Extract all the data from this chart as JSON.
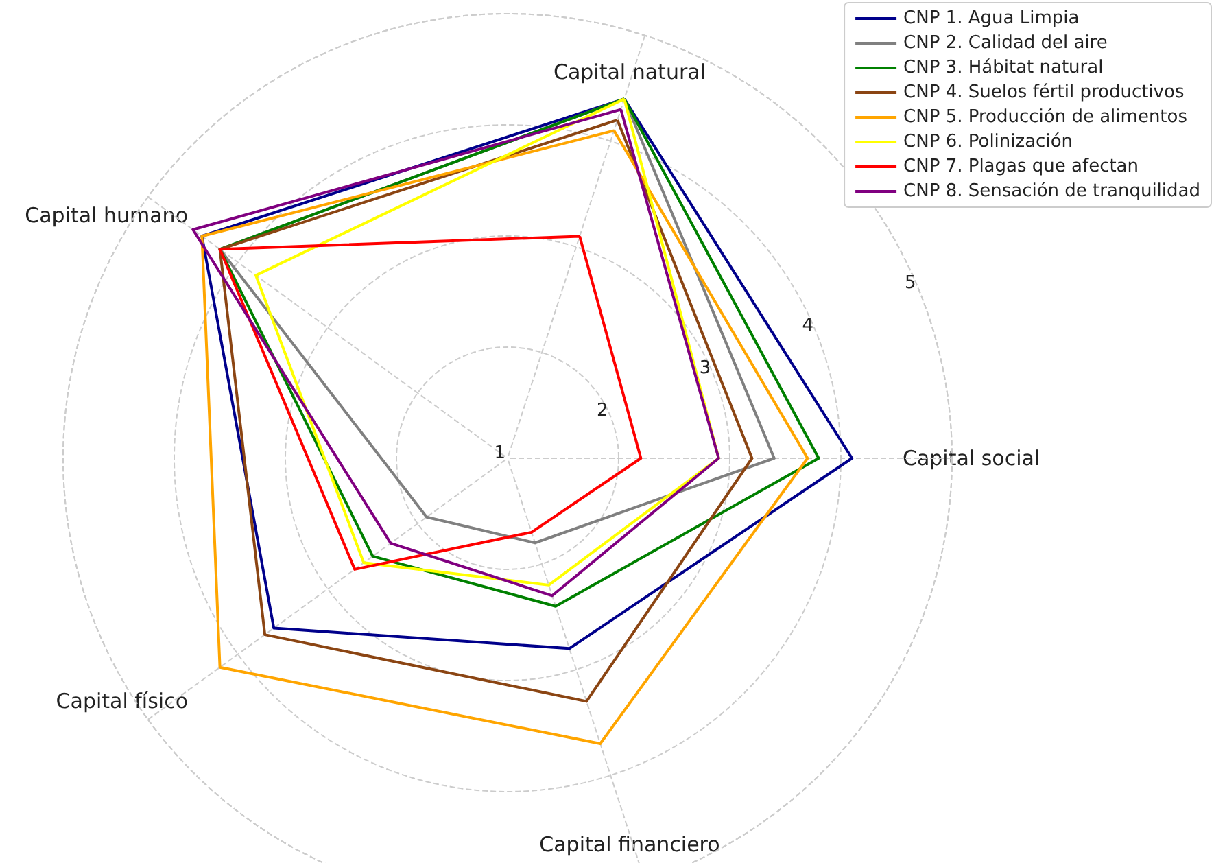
{
  "chart_data": {
    "type": "radar",
    "categories": [
      "Capital natural",
      "Capital social",
      "Capital financiero",
      "Capital físico",
      "Capital humano"
    ],
    "ylim": [
      1,
      5
    ],
    "yticks": [
      1,
      2,
      3,
      4,
      5
    ],
    "grid": true,
    "legend": "top right",
    "marker": "none",
    "line_style": "solid",
    "series": [
      {
        "name": "CNP 1. Agua Limpia",
        "color": "#00008b",
        "values": [
          4.4,
          4.1,
          2.8,
          3.6,
          4.4
        ]
      },
      {
        "name": "CNP 2. Calidad del aire",
        "color": "#808080",
        "values": [
          4.4,
          3.4,
          1.8,
          1.9,
          4.2
        ]
      },
      {
        "name": "CNP 3. Hábitat natural",
        "color": "#008000",
        "values": [
          4.4,
          3.8,
          2.4,
          2.5,
          4.2
        ]
      },
      {
        "name": "CNP 4. Suelos fértil productivos",
        "color": "#8b4513",
        "values": [
          4.2,
          3.2,
          3.3,
          3.7,
          4.2
        ]
      },
      {
        "name": "CNP 5. Producción de alimentos",
        "color": "#ffa500",
        "values": [
          4.1,
          3.7,
          3.7,
          4.2,
          4.4
        ]
      },
      {
        "name": "CNP 6. Polinización",
        "color": "#ffff00",
        "values": [
          4.4,
          2.9,
          2.2,
          2.6,
          3.8
        ]
      },
      {
        "name": "CNP 7. Plagas que afectan",
        "color": "#ff0000",
        "values": [
          3.1,
          2.2,
          1.7,
          2.7,
          4.2
        ]
      },
      {
        "name": "CNP 8. Sensación de tranquilidad",
        "color": "#800080",
        "values": [
          4.3,
          2.9,
          2.3,
          2.3,
          4.5
        ]
      }
    ]
  }
}
